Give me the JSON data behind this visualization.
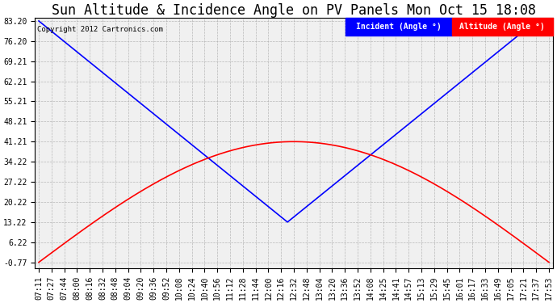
{
  "title": "Sun Altitude & Incidence Angle on PV Panels Mon Oct 15 18:08",
  "copyright": "Copyright 2012 Cartronics.com",
  "legend_incident": "Incident (Angle °)",
  "legend_altitude": "Altitude (Angle °)",
  "yticks": [
    83.2,
    76.2,
    69.21,
    62.21,
    55.21,
    48.21,
    41.21,
    34.22,
    27.22,
    20.22,
    13.22,
    6.22,
    -0.77
  ],
  "ymin": -0.77,
  "ymax": 83.2,
  "incident_color": "#0000FF",
  "altitude_color": "#FF0000",
  "background_color": "#FFFFFF",
  "plot_bg_color": "#F0F0F0",
  "grid_color": "#AAAAAA",
  "title_fontsize": 12,
  "tick_fontsize": 7,
  "x_times": [
    "07:11",
    "07:27",
    "07:44",
    "08:00",
    "08:16",
    "08:32",
    "08:48",
    "09:04",
    "09:20",
    "09:36",
    "09:52",
    "10:08",
    "10:24",
    "10:40",
    "10:56",
    "11:12",
    "11:28",
    "11:44",
    "12:00",
    "12:16",
    "12:32",
    "12:48",
    "13:04",
    "13:20",
    "13:36",
    "13:52",
    "14:08",
    "14:25",
    "14:41",
    "14:57",
    "15:13",
    "15:29",
    "15:45",
    "16:01",
    "16:17",
    "16:33",
    "16:49",
    "17:05",
    "17:21",
    "17:37",
    "17:53"
  ]
}
